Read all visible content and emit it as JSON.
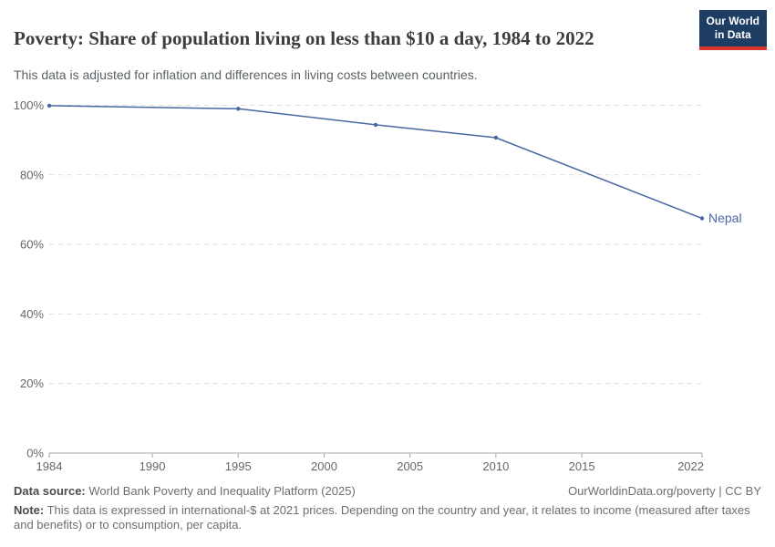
{
  "header": {
    "title": "Poverty: Share of population living on less than $10 a day, 1984 to 2022",
    "subtitle": "This data is adjusted for inflation and differences in living costs between countries.",
    "logo_line1": "Our World",
    "logo_line2": "in Data"
  },
  "chart_data": {
    "type": "line",
    "title": "Poverty: Share of population living on less than $10 a day, 1984 to 2022",
    "xlabel": "",
    "ylabel": "",
    "xlim": [
      1984,
      2022
    ],
    "ylim": [
      0,
      100
    ],
    "x_ticks": [
      1984,
      1990,
      1995,
      2000,
      2005,
      2010,
      2015,
      2022
    ],
    "y_ticks": [
      0,
      20,
      40,
      60,
      80,
      100
    ],
    "y_tick_suffix": "%",
    "grid": "horizontal-dashed",
    "legend_position": "line-end-label",
    "series": [
      {
        "name": "Nepal",
        "x": [
          1984,
          1995,
          2003,
          2010,
          2022
        ],
        "values": [
          99.9,
          99.0,
          94.4,
          90.7,
          67.5
        ]
      }
    ]
  },
  "colors": {
    "line": "#4a67a3",
    "grid": "#dcdcdc",
    "axis": "#a5a5a5",
    "tick_label": "#666666",
    "logo_bg": "#1d3d63",
    "logo_accent": "#d8352c"
  },
  "footer": {
    "datasource_label": "Data source:",
    "datasource_text": "World Bank Poverty and Inequality Platform (2025)",
    "license_text": "OurWorldinData.org/poverty | CC BY",
    "note_label": "Note:",
    "note_text": "This data is expressed in international-$ at 2021 prices. Depending on the country and year, it relates to income (measured after taxes and benefits) or to consumption, per capita."
  }
}
